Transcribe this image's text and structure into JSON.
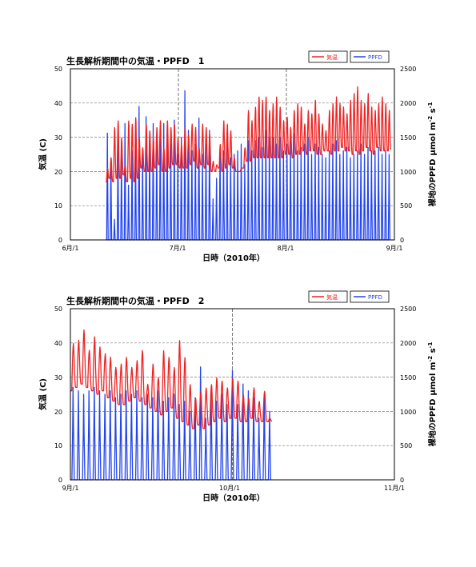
{
  "chart_data": [
    {
      "type": "line",
      "title": "生長解析期間中の気温・PPFD　1",
      "xlabel": "日時（2010年）",
      "ylabel": "気温 (C)",
      "y2label": "裸地のPPFD",
      "y2unit": {
        "base": "μmol m",
        "exp1": "-2",
        "mid": " s",
        "exp2": "-1"
      },
      "x_ticks": [
        "6月/1",
        "7月/1",
        "8月/1",
        "9月/1"
      ],
      "x_range": [
        "2010-06-01",
        "2010-09-01"
      ],
      "ylim": [
        0,
        50
      ],
      "y_ticks": [
        "0",
        "10",
        "20",
        "30",
        "40",
        "50"
      ],
      "y2lim": [
        0,
        2500
      ],
      "y2_ticks": [
        "0",
        "500",
        "1000",
        "1500",
        "2000",
        "2500"
      ],
      "grid": true,
      "legend_position": "top-right",
      "series": [
        {
          "name": "気温",
          "axis": "left",
          "color": "#ee2222",
          "x_start": "2010-06-11",
          "x_end": "2010-08-31",
          "samples_per_day": 4,
          "daily_min": [
            17,
            18,
            17,
            18,
            18,
            19,
            17,
            18,
            17,
            18,
            21,
            20,
            20,
            20,
            21,
            22,
            20,
            20,
            21,
            22,
            22,
            21,
            21,
            21,
            22,
            23,
            21,
            22,
            21,
            22,
            20,
            20,
            21,
            20,
            21,
            22,
            21,
            20,
            20,
            21,
            23,
            23,
            24,
            24,
            24,
            24,
            24,
            24,
            24,
            24,
            24,
            25,
            25,
            24,
            25,
            25,
            26,
            25,
            26,
            26,
            25,
            25,
            26,
            26,
            25,
            26,
            26,
            27,
            26,
            26,
            25,
            26,
            25,
            26,
            27,
            26,
            25,
            27,
            26,
            26,
            26
          ],
          "daily_max": [
            21,
            24,
            33,
            35,
            30,
            22,
            35,
            34,
            36,
            30,
            27,
            34,
            32,
            30,
            33,
            35,
            27,
            35,
            33,
            34,
            30,
            28,
            33,
            31,
            34,
            33,
            27,
            34,
            33,
            31,
            23,
            22,
            28,
            35,
            34,
            32,
            24,
            20,
            21,
            27,
            38,
            35,
            39,
            42,
            41,
            42,
            38,
            40,
            42,
            39,
            35,
            36,
            33,
            38,
            40,
            39,
            34,
            38,
            37,
            41,
            37,
            34,
            32,
            38,
            40,
            42,
            40,
            39,
            37,
            41,
            43,
            45,
            41,
            40,
            43,
            39,
            38,
            40,
            42,
            40,
            38
          ]
        },
        {
          "name": "PPFD",
          "axis": "right",
          "color": "#2244ee",
          "x_start": "2010-06-11",
          "x_end": "2010-08-31",
          "daily_peak": [
            1560,
            1200,
            300,
            1400,
            1250,
            1700,
            800,
            1300,
            1450,
            1950,
            1250,
            1800,
            1500,
            1700,
            1500,
            1600,
            1700,
            1650,
            1400,
            1750,
            1250,
            1500,
            2180,
            1600,
            1300,
            1400,
            1780,
            1250,
            1400,
            1600,
            600,
            900,
            1350,
            1300,
            1500,
            1200,
            1250,
            1300,
            1400,
            1100,
            1450,
            1300,
            1450,
            1500,
            1350,
            1600,
            1500,
            1500,
            1400,
            1500,
            1300,
            1400,
            1450,
            1550,
            1300,
            1350,
            1400,
            1500,
            1250,
            1400,
            1350,
            1250,
            1200,
            1300,
            1400,
            1450,
            1250,
            1300,
            1350,
            1200,
            1250,
            1300,
            1400,
            1250,
            1350,
            1300,
            1300,
            1350,
            1250,
            1300,
            1250
          ]
        }
      ]
    },
    {
      "type": "line",
      "title": "生長解析期間中の気温・PPFD　2",
      "xlabel": "日時（2010年）",
      "ylabel": "気温 (C)",
      "y2label": "裸地のPPFD",
      "y2unit": {
        "base": "μmol m",
        "exp1": "-2",
        "mid": " s",
        "exp2": "-1"
      },
      "x_ticks": [
        "9月/1",
        "10月/1",
        "11月/1"
      ],
      "x_range": [
        "2010-09-01",
        "2010-11-01"
      ],
      "ylim": [
        0,
        50
      ],
      "y_ticks": [
        "0",
        "10",
        "20",
        "30",
        "40",
        "50"
      ],
      "y2lim": [
        0,
        2500
      ],
      "y2_ticks": [
        "0",
        "500",
        "1000",
        "1500",
        "2000",
        "2500"
      ],
      "grid": true,
      "legend_position": "top-right",
      "series": [
        {
          "name": "気温",
          "axis": "left",
          "color": "#ee2222",
          "x_start": "2010-09-01",
          "x_end": "2010-10-08",
          "samples_per_day": 4,
          "daily_min": [
            26,
            27,
            28,
            27,
            26,
            25,
            26,
            24,
            23,
            22,
            22,
            23,
            24,
            23,
            22,
            21,
            20,
            19,
            20,
            21,
            18,
            17,
            16,
            15,
            16,
            15,
            16,
            17,
            18,
            17,
            18,
            18,
            17,
            17,
            18,
            17,
            17,
            17
          ],
          "daily_max": [
            40,
            41,
            44,
            38,
            42,
            39,
            37,
            36,
            33,
            34,
            36,
            33,
            35,
            38,
            28,
            34,
            30,
            38,
            36,
            33,
            41,
            36,
            28,
            24,
            26,
            27,
            28,
            30,
            29,
            27,
            30,
            29,
            25,
            24,
            27,
            23,
            26,
            18
          ]
        },
        {
          "name": "PPFD",
          "axis": "right",
          "color": "#2244ee",
          "x_start": "2010-09-01",
          "x_end": "2010-10-08",
          "daily_peak": [
            1350,
            1300,
            1250,
            1300,
            1350,
            1300,
            1250,
            1300,
            1200,
            1250,
            1300,
            1250,
            1300,
            1200,
            1250,
            1200,
            1300,
            1150,
            1200,
            1250,
            1100,
            1150,
            1000,
            1200,
            1650,
            900,
            1300,
            1150,
            1250,
            1100,
            1600,
            1100,
            1400,
            1300,
            1200,
            900,
            1250,
            1000
          ]
        }
      ]
    }
  ]
}
